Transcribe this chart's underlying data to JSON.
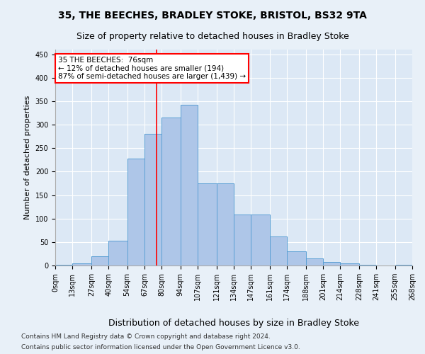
{
  "title": "35, THE BEECHES, BRADLEY STOKE, BRISTOL, BS32 9TA",
  "subtitle": "Size of property relative to detached houses in Bradley Stoke",
  "xlabel": "Distribution of detached houses by size in Bradley Stoke",
  "ylabel": "Number of detached properties",
  "footnote1": "Contains HM Land Registry data © Crown copyright and database right 2024.",
  "footnote2": "Contains public sector information licensed under the Open Government Licence v3.0.",
  "bar_edges": [
    0,
    13,
    27,
    40,
    54,
    67,
    80,
    94,
    107,
    121,
    134,
    147,
    161,
    174,
    188,
    201,
    214,
    228,
    241,
    255,
    268
  ],
  "bar_values": [
    2,
    5,
    20,
    53,
    228,
    280,
    315,
    343,
    175,
    175,
    108,
    108,
    62,
    30,
    15,
    7,
    5,
    1,
    0,
    2
  ],
  "bar_color": "#aec6e8",
  "bar_edge_color": "#5a9fd4",
  "property_line_x": 76,
  "property_line_color": "red",
  "annotation_line1": "35 THE BEECHES:  76sqm",
  "annotation_line2": "← 12% of detached houses are smaller (194)",
  "annotation_line3": "87% of semi-detached houses are larger (1,439) →",
  "annotation_box_color": "red",
  "ylim": [
    0,
    460
  ],
  "yticks": [
    0,
    50,
    100,
    150,
    200,
    250,
    300,
    350,
    400,
    450
  ],
  "bg_color": "#e8f0f8",
  "plot_bg_color": "#dce8f5",
  "grid_color": "white",
  "title_fontsize": 10,
  "subtitle_fontsize": 9,
  "tick_fontsize": 7,
  "ylabel_fontsize": 8,
  "xlabel_fontsize": 9,
  "footer_fontsize": 6.5
}
